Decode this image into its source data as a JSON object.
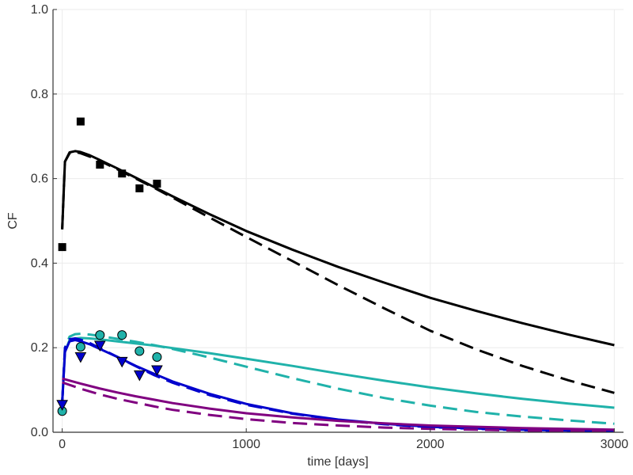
{
  "chart_data": {
    "type": "line",
    "title": "",
    "xlabel": "time [days]",
    "ylabel": "CF",
    "xlim": [
      -50,
      3050
    ],
    "ylim": [
      0,
      1.0
    ],
    "x_ticks": [
      0,
      1000,
      2000,
      3000
    ],
    "x_tick_labels": [
      "0",
      "1000",
      "2000",
      "3000"
    ],
    "y_ticks": [
      0.0,
      0.2,
      0.4,
      0.6,
      0.8,
      1.0
    ],
    "y_tick_labels": [
      "0.0",
      "0.2",
      "0.4",
      "0.6",
      "0.8",
      "1.0"
    ],
    "grid": true,
    "legend": "none",
    "series": [
      {
        "style": "solid",
        "color": "#000000",
        "x": [
          0,
          15,
          40,
          70,
          100,
          150,
          200,
          300,
          400,
          500,
          600,
          800,
          1000,
          1250,
          1500,
          1750,
          2000,
          2250,
          2500,
          2750,
          3000
        ],
        "y": [
          0.48,
          0.64,
          0.662,
          0.665,
          0.663,
          0.655,
          0.645,
          0.624,
          0.602,
          0.58,
          0.558,
          0.516,
          0.476,
          0.432,
          0.391,
          0.354,
          0.318,
          0.287,
          0.258,
          0.231,
          0.206
        ]
      },
      {
        "style": "dashed",
        "color": "#000000",
        "x": [
          0,
          15,
          40,
          70,
          100,
          150,
          200,
          300,
          400,
          500,
          600,
          800,
          1000,
          1250,
          1500,
          1750,
          2000,
          2250,
          2500,
          2750,
          3000
        ],
        "y": [
          0.48,
          0.64,
          0.66,
          0.663,
          0.66,
          0.652,
          0.643,
          0.622,
          0.6,
          0.578,
          0.555,
          0.508,
          0.462,
          0.405,
          0.348,
          0.293,
          0.24,
          0.196,
          0.157,
          0.123,
          0.093
        ]
      },
      {
        "style": "solid",
        "color": "#20b2aa",
        "x": [
          0,
          15,
          40,
          70,
          100,
          150,
          200,
          300,
          400,
          500,
          600,
          800,
          1000,
          1250,
          1500,
          1750,
          2000,
          2250,
          2500,
          2750,
          3000
        ],
        "y": [
          0.07,
          0.19,
          0.218,
          0.222,
          0.223,
          0.222,
          0.22,
          0.215,
          0.21,
          0.205,
          0.199,
          0.187,
          0.174,
          0.157,
          0.139,
          0.122,
          0.106,
          0.092,
          0.079,
          0.068,
          0.058
        ]
      },
      {
        "style": "dashed",
        "color": "#20b2aa",
        "x": [
          0,
          15,
          40,
          70,
          100,
          150,
          200,
          300,
          400,
          500,
          600,
          800,
          1000,
          1250,
          1500,
          1750,
          2000,
          2250,
          2500,
          2750,
          3000
        ],
        "y": [
          0.07,
          0.2,
          0.226,
          0.232,
          0.233,
          0.231,
          0.228,
          0.221,
          0.214,
          0.206,
          0.197,
          0.177,
          0.155,
          0.128,
          0.103,
          0.081,
          0.063,
          0.048,
          0.037,
          0.028,
          0.02
        ]
      },
      {
        "style": "solid",
        "color": "#0000cd",
        "x": [
          0,
          15,
          40,
          70,
          100,
          150,
          200,
          300,
          400,
          500,
          600,
          800,
          1000,
          1250,
          1500,
          1750,
          2000,
          2250,
          2500,
          2750,
          3000
        ],
        "y": [
          0.07,
          0.19,
          0.215,
          0.218,
          0.215,
          0.208,
          0.198,
          0.178,
          0.157,
          0.138,
          0.12,
          0.091,
          0.067,
          0.045,
          0.03,
          0.02,
          0.013,
          0.009,
          0.006,
          0.004,
          0.003
        ]
      },
      {
        "style": "dashed",
        "color": "#0000cd",
        "x": [
          0,
          15,
          40,
          70,
          100,
          150,
          200,
          300,
          400,
          500,
          600,
          800,
          1000,
          1250,
          1500,
          1750,
          2000,
          2250,
          2500,
          2750,
          3000
        ],
        "y": [
          0.07,
          0.2,
          0.22,
          0.222,
          0.219,
          0.211,
          0.2,
          0.178,
          0.156,
          0.135,
          0.117,
          0.088,
          0.065,
          0.044,
          0.029,
          0.019,
          0.012,
          0.008,
          0.005,
          0.003,
          0.002
        ]
      },
      {
        "style": "solid",
        "color": "#800080",
        "x": [
          0,
          100,
          200,
          300,
          400,
          500,
          600,
          800,
          1000,
          1250,
          1500,
          1750,
          2000,
          2250,
          2500,
          2750,
          3000
        ],
        "y": [
          0.127,
          0.115,
          0.104,
          0.094,
          0.085,
          0.077,
          0.069,
          0.056,
          0.045,
          0.035,
          0.027,
          0.021,
          0.016,
          0.013,
          0.01,
          0.008,
          0.006
        ]
      },
      {
        "style": "dashed",
        "color": "#800080",
        "x": [
          0,
          100,
          200,
          300,
          400,
          500,
          600,
          800,
          1000,
          1250,
          1500,
          1750,
          2000,
          2250,
          2500,
          2750,
          3000
        ],
        "y": [
          0.118,
          0.103,
          0.09,
          0.079,
          0.07,
          0.061,
          0.053,
          0.041,
          0.031,
          0.022,
          0.016,
          0.011,
          0.008,
          0.006,
          0.004,
          0.003,
          0.002
        ]
      }
    ],
    "markers": [
      {
        "shape": "square",
        "color": "#000000",
        "x": [
          0,
          100,
          205,
          325,
          420,
          515
        ],
        "y": [
          0.438,
          0.735,
          0.633,
          0.612,
          0.577,
          0.588
        ]
      },
      {
        "shape": "circle",
        "color": "#20b2aa",
        "x": [
          0,
          100,
          205,
          325,
          420,
          515
        ],
        "y": [
          0.05,
          0.202,
          0.23,
          0.23,
          0.192,
          0.178
        ]
      },
      {
        "shape": "triangle-down",
        "color": "#0000cd",
        "x": [
          0,
          100,
          205,
          325,
          420,
          515
        ],
        "y": [
          0.065,
          0.178,
          0.205,
          0.167,
          0.135,
          0.147
        ]
      }
    ]
  }
}
